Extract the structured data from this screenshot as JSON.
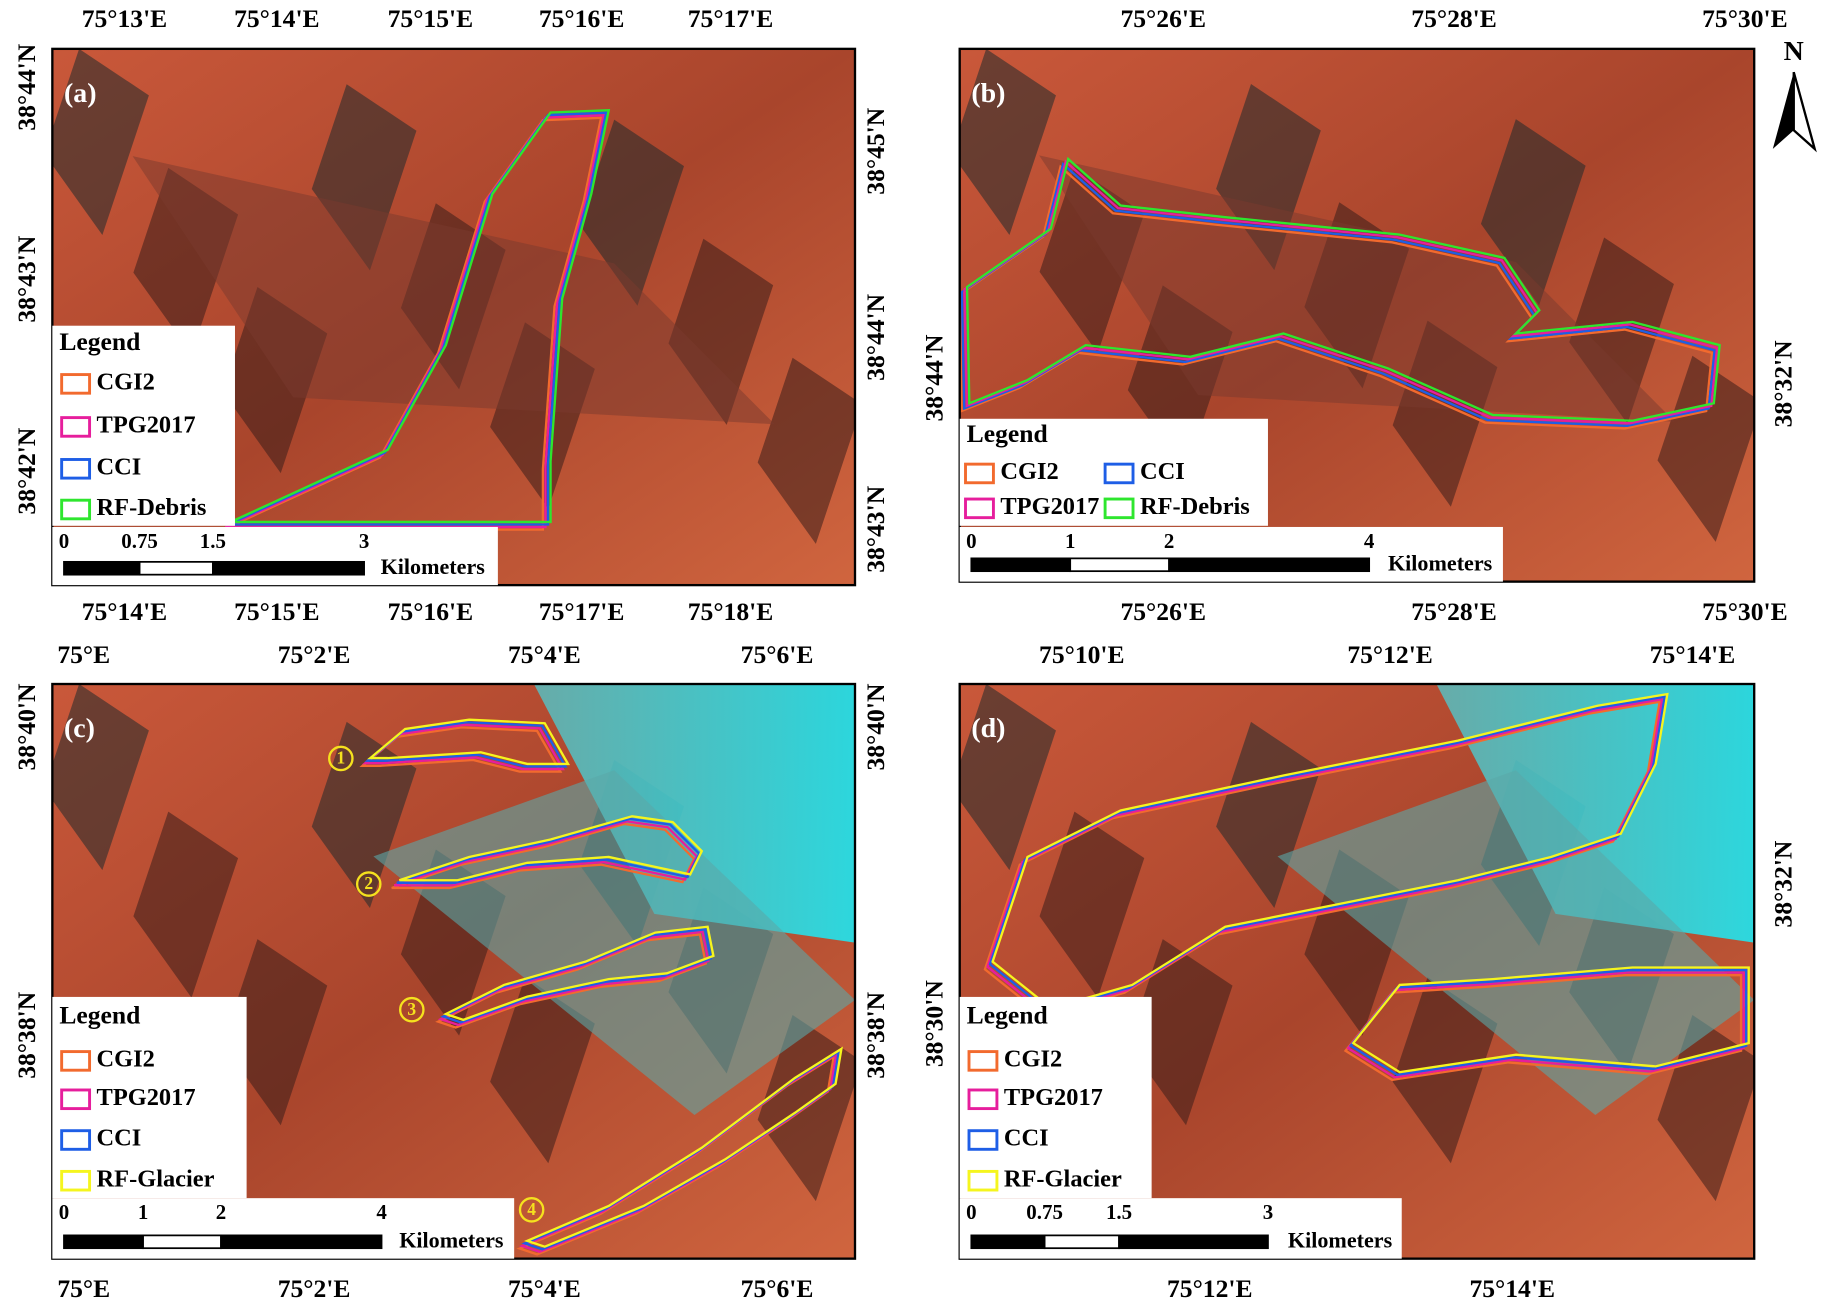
{
  "north": "N",
  "panels": [
    {
      "label": "(a)",
      "top_ticks": [
        "75°13'E",
        "75°14'E",
        "75°15'E",
        "75°16'E",
        "75°17'E"
      ],
      "bottom_ticks": [
        "75°14'E",
        "75°15'E",
        "75°16'E",
        "75°17'E",
        "75°18'E"
      ],
      "left_ticks": [
        "38°44'N",
        "38°43'N",
        "38°42'N"
      ],
      "right_ticks": [
        "38°45'N",
        "38°44'N",
        "38°43'N"
      ],
      "legend": {
        "title": "Legend",
        "entries": [
          {
            "name": "CGI2",
            "color": "#f26a2e"
          },
          {
            "name": "TPG2017",
            "color": "#e61e9c"
          },
          {
            "name": "CCI",
            "color": "#1e5ee6"
          },
          {
            "name": "RF-Debris",
            "color": "#2ee62e"
          }
        ]
      },
      "scale_ticks": [
        "0",
        "0.75",
        "1.5",
        "3"
      ],
      "scale_unit": "Kilometers"
    },
    {
      "label": "(b)",
      "top_ticks": [
        "75°26'E",
        "75°28'E",
        "75°30'E"
      ],
      "bottom_ticks": [
        "75°26'E",
        "75°28'E",
        "75°30'E"
      ],
      "left_ticks": [
        "38°44'N"
      ],
      "right_ticks": [
        "38°32'N"
      ],
      "legend": {
        "title": "Legend",
        "entries": [
          {
            "name": "CGI2",
            "color": "#f26a2e"
          },
          {
            "name": "CCI",
            "color": "#1e5ee6"
          },
          {
            "name": "TPG2017",
            "color": "#e61e9c"
          },
          {
            "name": "RF-Debris",
            "color": "#2ee62e"
          }
        ]
      },
      "scale_ticks": [
        "0",
        "1",
        "2",
        "4"
      ],
      "scale_unit": "Kilometers"
    },
    {
      "label": "(c)",
      "top_ticks": [
        "75°E",
        "75°2'E",
        "75°4'E",
        "75°6'E"
      ],
      "bottom_ticks": [
        "75°E",
        "75°2'E",
        "75°4'E",
        "75°6'E"
      ],
      "left_ticks": [
        "38°40'N",
        "38°38'N"
      ],
      "right_ticks": [
        "38°40'N",
        "38°38'N"
      ],
      "legend": {
        "title": "Legend",
        "entries": [
          {
            "name": "CGI2",
            "color": "#f26a2e"
          },
          {
            "name": "TPG2017",
            "color": "#e61e9c"
          },
          {
            "name": "CCI",
            "color": "#1e5ee6"
          },
          {
            "name": "RF-Glacier",
            "color": "#f5f51e"
          }
        ]
      },
      "scale_ticks": [
        "0",
        "1",
        "2",
        "4"
      ],
      "scale_unit": "Kilometers",
      "markers": [
        "1",
        "2",
        "3",
        "4"
      ]
    },
    {
      "label": "(d)",
      "top_ticks": [
        "75°10'E",
        "75°12'E",
        "75°14'E"
      ],
      "bottom_ticks": [
        "75°12'E",
        "75°14'E"
      ],
      "left_ticks": [
        "38°30'N"
      ],
      "right_ticks": [
        "38°32'N"
      ],
      "legend": {
        "title": "Legend",
        "entries": [
          {
            "name": "CGI2",
            "color": "#f26a2e"
          },
          {
            "name": "TPG2017",
            "color": "#e61e9c"
          },
          {
            "name": "CCI",
            "color": "#1e5ee6"
          },
          {
            "name": "RF-Glacier",
            "color": "#f5f51e"
          }
        ]
      },
      "scale_ticks": [
        "0",
        "0.75",
        "1.5",
        "3"
      ],
      "scale_unit": "Kilometers"
    }
  ]
}
